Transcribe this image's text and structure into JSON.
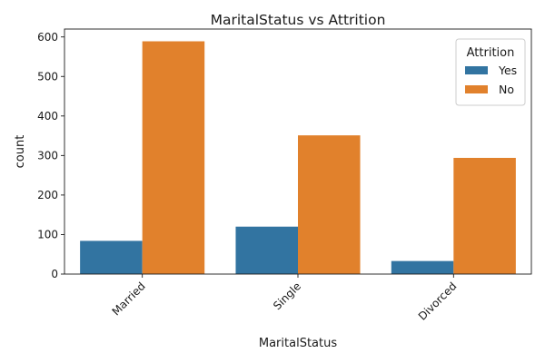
{
  "chart_data": {
    "type": "bar",
    "title": "MaritalStatus vs Attrition",
    "xlabel": "MaritalStatus",
    "ylabel": "count",
    "categories": [
      "Married",
      "Single",
      "Divorced"
    ],
    "series": [
      {
        "name": "Yes",
        "values": [
          84,
          120,
          33
        ],
        "color": "#3274a1"
      },
      {
        "name": "No",
        "values": [
          589,
          351,
          294
        ],
        "color": "#e1812c"
      }
    ],
    "ylim": [
      0,
      620
    ],
    "yticks": [
      0,
      100,
      200,
      300,
      400,
      500,
      600
    ],
    "grid": false,
    "legend": {
      "title": "Attrition",
      "placement": "top-right"
    }
  }
}
